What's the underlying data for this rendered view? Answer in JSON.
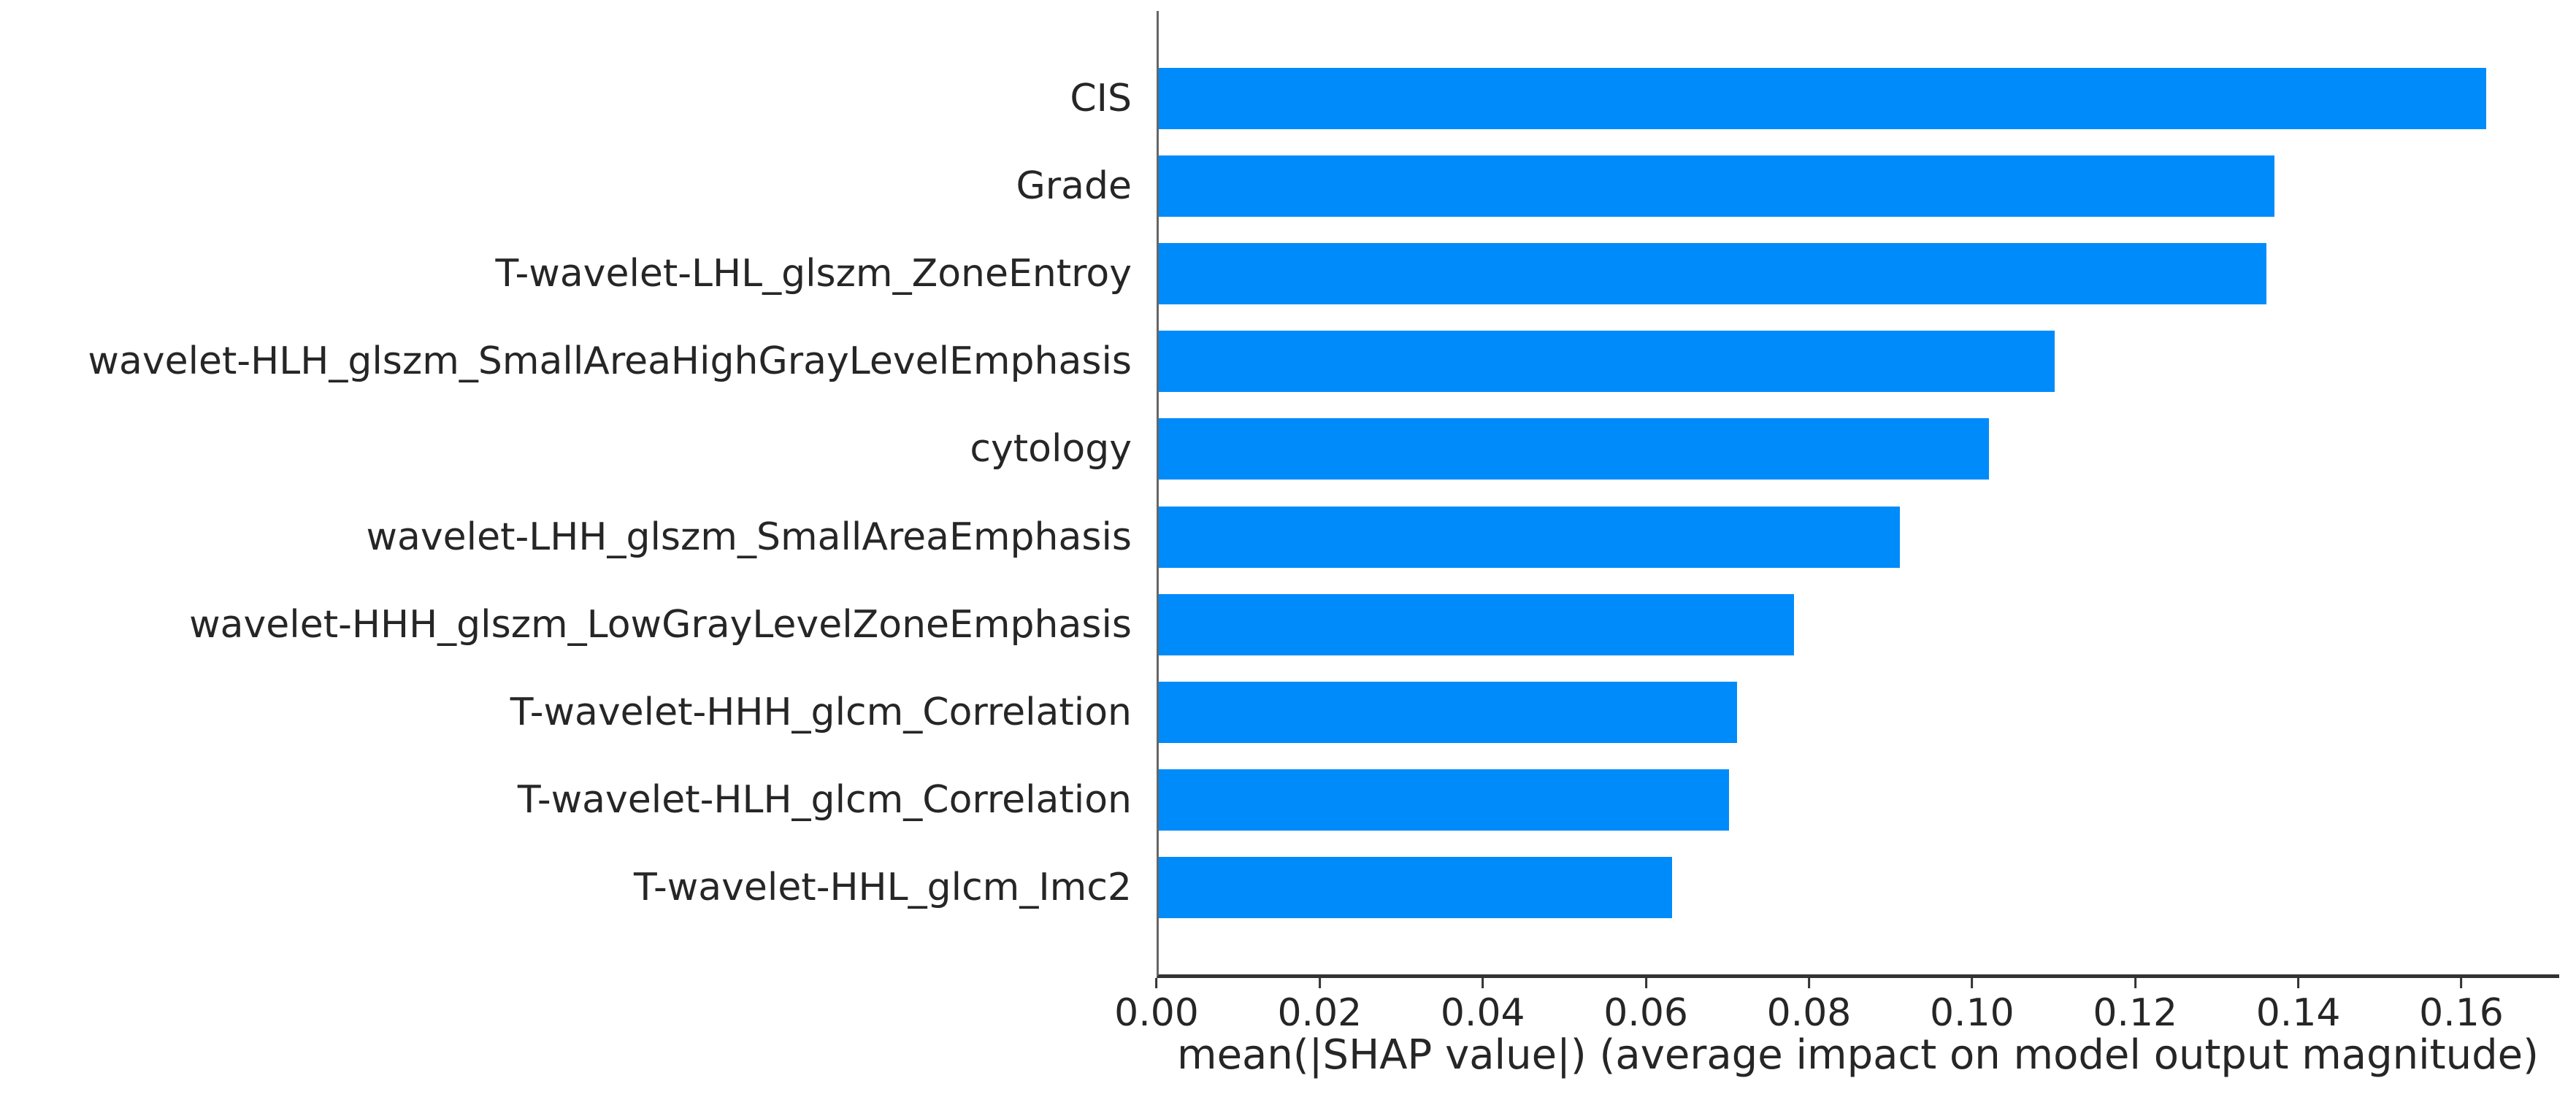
{
  "chart_data": {
    "type": "bar",
    "orientation": "horizontal",
    "title": "",
    "xlabel": "mean(|SHAP value|) (average impact on model output magnitude)",
    "ylabel": "",
    "categories": [
      "CIS",
      "Grade",
      "T-wavelet-LHL_glszm_ZoneEntroy",
      "wavelet-HLH_glszm_SmallAreaHighGrayLevelEmphasis",
      "cytology",
      "wavelet-LHH_glszm_SmallAreaEmphasis",
      "wavelet-HHH_glszm_LowGrayLevelZoneEmphasis",
      "T-wavelet-HHH_glcm_Correlation",
      "T-wavelet-HLH_glcm_Correlation",
      "T-wavelet-HHL_glcm_Imc2"
    ],
    "values": [
      0.163,
      0.137,
      0.136,
      0.11,
      0.102,
      0.091,
      0.078,
      0.071,
      0.07,
      0.063
    ],
    "x_ticks": [
      0.0,
      0.02,
      0.04,
      0.06,
      0.08,
      0.1,
      0.12,
      0.14,
      0.16
    ],
    "x_tick_labels": [
      "0.00",
      "0.02",
      "0.04",
      "0.06",
      "0.08",
      "0.10",
      "0.12",
      "0.14",
      "0.16"
    ],
    "xlim": [
      0,
      0.172
    ],
    "grid": false,
    "legend_position": "none",
    "bar_color": "#008bfb",
    "text_color": "#262626",
    "spine_color": "#333333"
  }
}
